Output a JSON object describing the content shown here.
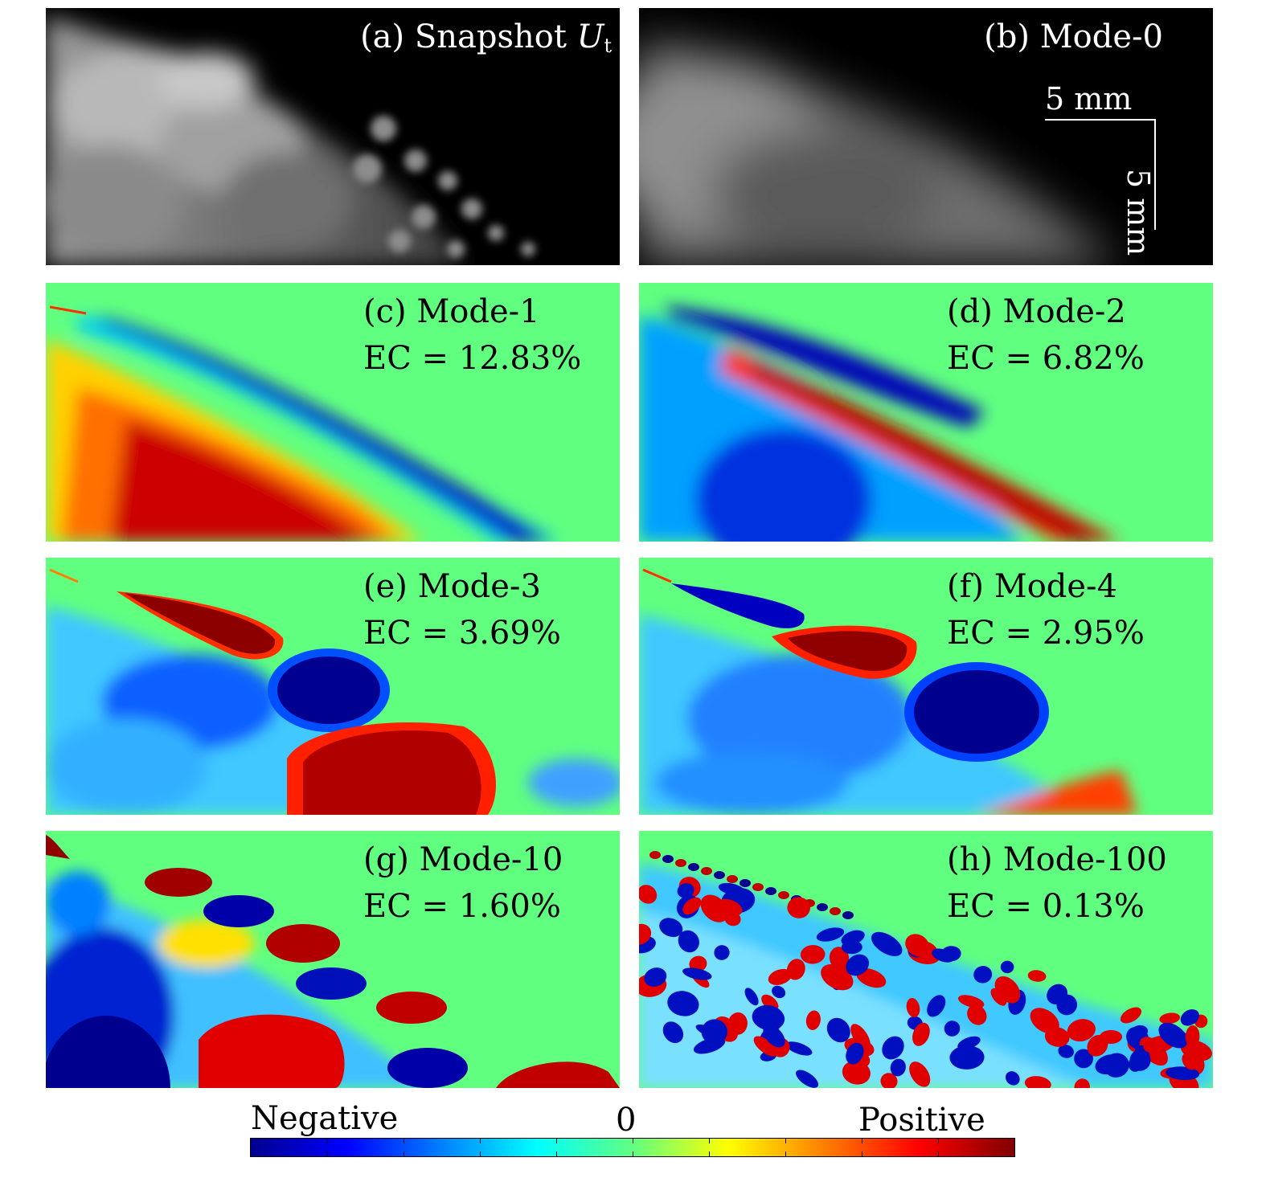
{
  "panels": {
    "a": {
      "label": "(a)",
      "title": "Snapshot",
      "symbol": "U",
      "subscript": "t"
    },
    "b": {
      "label": "(b)",
      "title": "Mode-0",
      "scale_x": "5 mm",
      "scale_y": "5 mm"
    },
    "c": {
      "label": "(c)",
      "title": "Mode-1",
      "ec": "EC = 12.83%"
    },
    "d": {
      "label": "(d)",
      "title": "Mode-2",
      "ec": "EC = 6.82%"
    },
    "e": {
      "label": "(e)",
      "title": "Mode-3",
      "ec": "EC = 3.69%"
    },
    "f": {
      "label": "(f)",
      "title": "Mode-4",
      "ec": "EC = 2.95%"
    },
    "g": {
      "label": "(g)",
      "title": "Mode-10",
      "ec": "EC = 1.60%"
    },
    "h": {
      "label": "(h)",
      "title": "Mode-100",
      "ec": "EC = 0.13%"
    }
  },
  "colorbar": {
    "left_label": "Negative",
    "center_label": "0",
    "right_label": "Positive",
    "colors": [
      "#00008f",
      "#0000ff",
      "#0080ff",
      "#00ffff",
      "#60ff80",
      "#ffff00",
      "#ff8000",
      "#ff0000",
      "#800000"
    ]
  },
  "colors": {
    "background_mode": "#60ff80",
    "negative": "#00008f",
    "positive": "#800000"
  }
}
